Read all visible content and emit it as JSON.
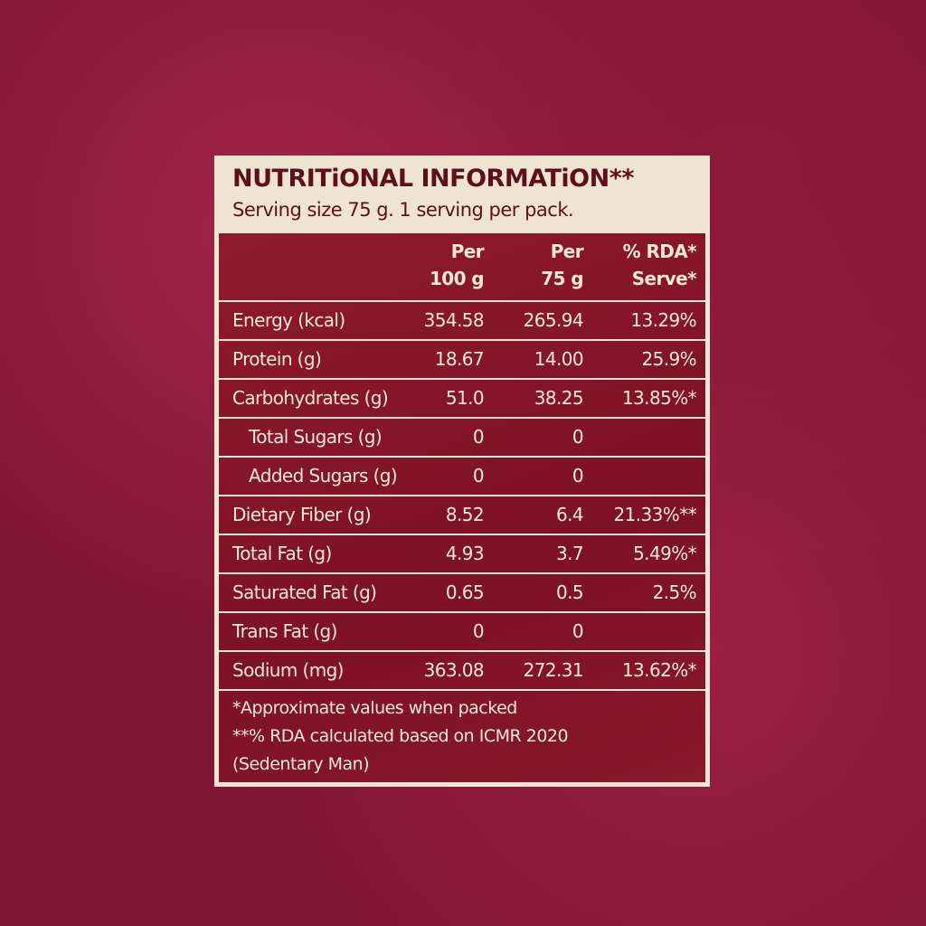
{
  "header": {
    "title": "NUTRITiONAL INFORMATiON**",
    "subtitle": "Serving size 75 g.  1 serving per pack."
  },
  "table": {
    "columns": [
      [
        "Per",
        "100 g"
      ],
      [
        "Per",
        "75 g"
      ],
      [
        "% RDA*",
        "Serve*"
      ]
    ],
    "rows": [
      {
        "name": "Energy (kcal)",
        "per100": "354.58",
        "per75": "265.94",
        "rda": "13.29%"
      },
      {
        "name": "Protein (g)",
        "per100": "18.67",
        "per75": "14.00",
        "rda": "25.9%"
      },
      {
        "name": "Carbohydrates (g)",
        "per100": "51.0",
        "per75": "38.25",
        "rda": "13.85%*"
      },
      {
        "name": "Total Sugars (g)",
        "per100": "0",
        "per75": "0",
        "indent": true
      },
      {
        "name": "Added Sugars (g)",
        "per100": "0",
        "per75": "0",
        "indent": true
      },
      {
        "name": "Dietary Fiber (g)",
        "per100": "8.52",
        "per75": "6.4",
        "rda": "21.33%**"
      },
      {
        "name": "Total Fat (g)",
        "per100": "4.93",
        "per75": "3.7",
        "rda": "5.49%*"
      },
      {
        "name": "Saturated Fat (g)",
        "per100": "0.65",
        "per75": "0.5",
        "rda": "2.5%"
      },
      {
        "name": "Trans Fat (g)",
        "per100": "0",
        "per75": "0"
      },
      {
        "name": "Sodium (mg)",
        "per100": "363.08",
        "per75": "272.31",
        "rda": "13.62%*"
      }
    ]
  },
  "footnotes": [
    "*Approximate values when packed",
    "**% RDA calculated based on ICMR 2020",
    "(Sedentary Man)"
  ]
}
